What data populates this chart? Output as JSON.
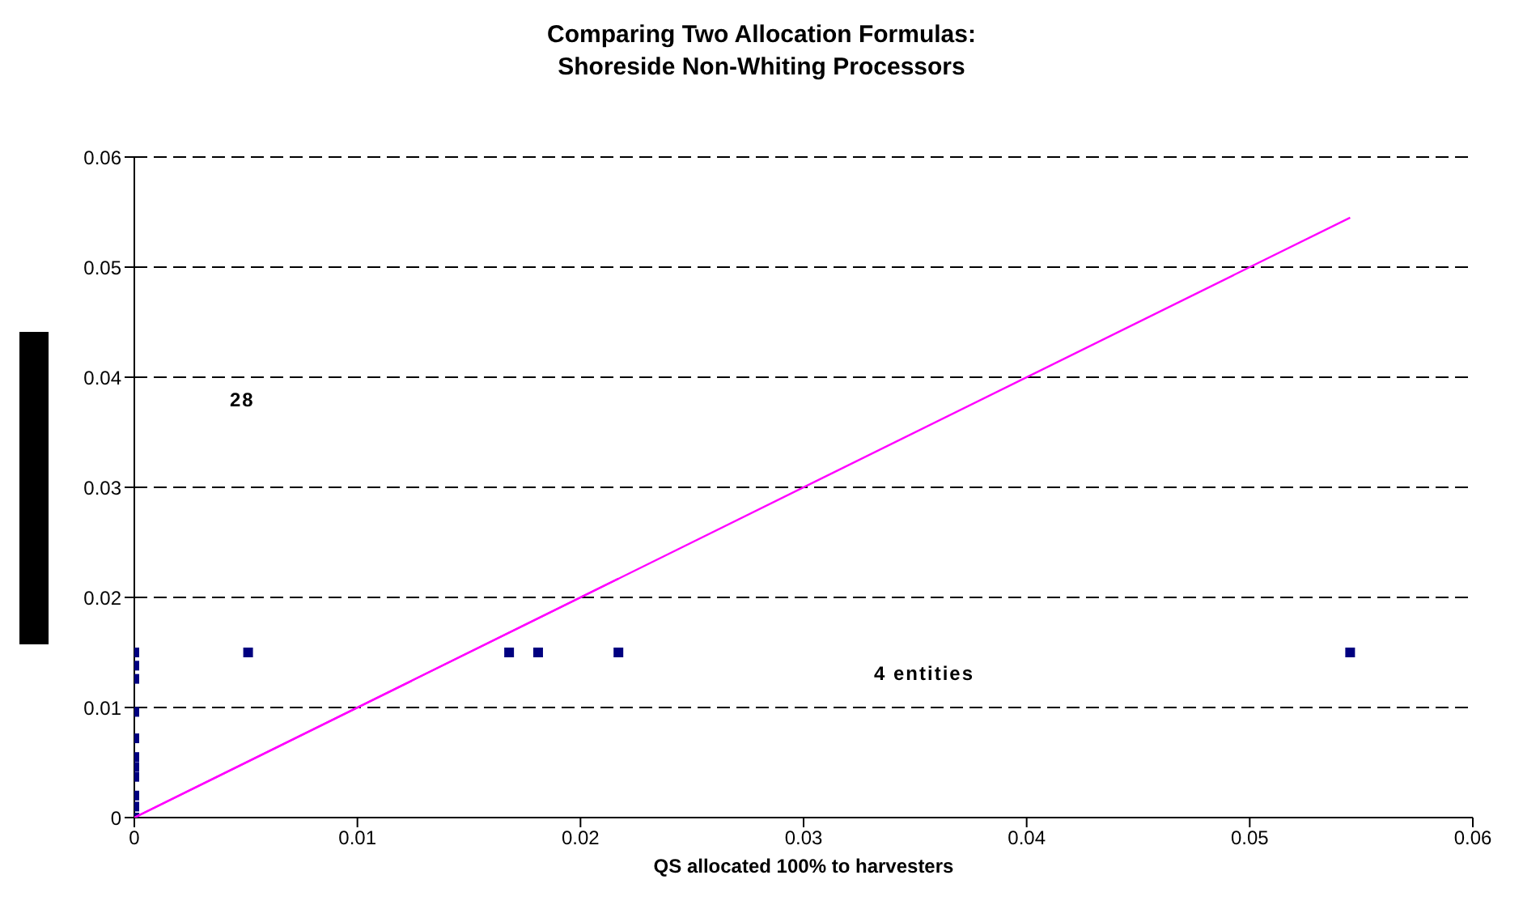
{
  "chart_data": {
    "type": "scatter",
    "title": "Comparing Two Allocation Formulas:\nShoreside Non-Whiting Processors",
    "xlabel": "QS allocated 100% to harvesters",
    "series": [
      {
        "color": "#000080",
        "marker": "square",
        "x": [
          0,
          0,
          0,
          0,
          0,
          0,
          0,
          0,
          0,
          0,
          0,
          0.0051,
          0.0168,
          0.0181,
          0.0217,
          0.0545
        ],
        "values": [
          0.015,
          0.0138,
          0.0126,
          0.0096,
          0.0072,
          0.0055,
          0.0046,
          0.0037,
          0.002,
          0.001,
          0,
          0.015,
          0.015,
          0.015,
          0.015,
          0.015
        ]
      },
      {
        "type": "line",
        "color": "#ff00ff",
        "marker": "none",
        "x": [
          0,
          0.0545
        ],
        "values": [
          0,
          0.0545
        ]
      },
      {
        "type": "line",
        "color": "#ff00ff",
        "marker": "none",
        "x": [
          0,
          0.0217
        ],
        "values": [
          0,
          0.0217
        ]
      }
    ],
    "annotations": [
      "28",
      "4 entities"
    ],
    "xlim": [
      0,
      0.06
    ],
    "xticks": [
      0,
      0.01,
      0.02,
      0.03,
      0.04,
      0.05,
      0.06
    ],
    "ylim": [
      0,
      0.06
    ],
    "yticks": [
      0,
      0.01,
      0.02,
      0.03,
      0.04,
      0.05,
      0.06
    ],
    "grid": "y",
    "legend": false
  }
}
